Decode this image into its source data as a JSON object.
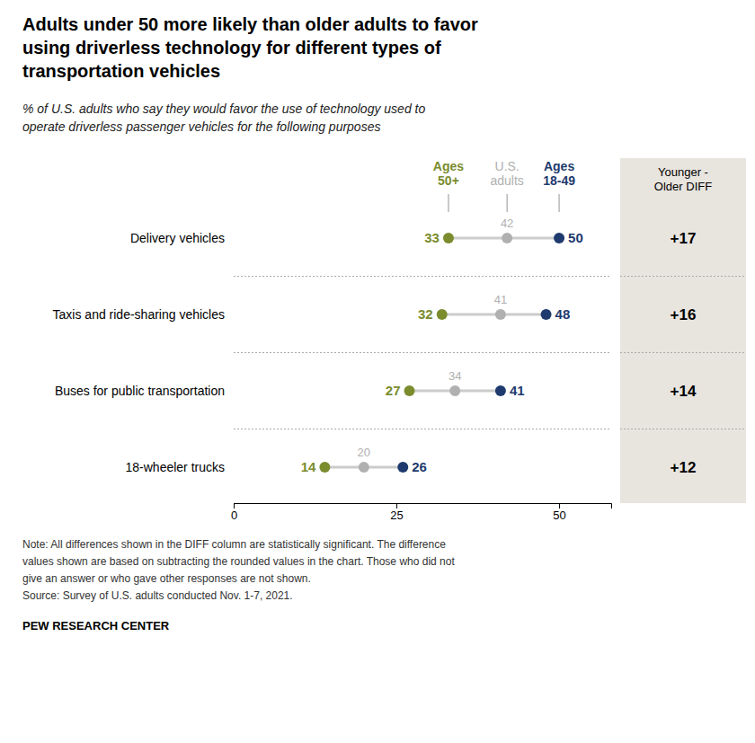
{
  "chart_data": {
    "type": "dot",
    "title": "Adults under 50 more likely than older adults to favor\nusing driverless technology for different types of\ntransportation vehicles",
    "subtitle": "% of U.S. adults who say they would favor the use of technology used to\noperate driverless passenger vehicles for the following purposes",
    "categories": [
      "Delivery vehicles",
      "Taxis and ride-sharing vehicles",
      "Buses for public transportation",
      "18-wheeler trucks"
    ],
    "series": [
      {
        "name": "Ages\n50+",
        "color": "#7a8c2e",
        "values": [
          33,
          32,
          27,
          14
        ]
      },
      {
        "name": "U.S.\nadults",
        "color": "#b0b0b0",
        "values": [
          42,
          41,
          34,
          20
        ]
      },
      {
        "name": "Ages\n18-49",
        "color": "#1e3a6e",
        "values": [
          50,
          48,
          41,
          26
        ]
      },
      {
        "name": "Younger -\nOlder DIFF",
        "type": "text",
        "color": "#e8e4de",
        "values": [
          17,
          16,
          14,
          12
        ],
        "value_labels": [
          "+17",
          "+16",
          "+14",
          "+12"
        ]
      }
    ],
    "xlim": [
      0,
      58
    ],
    "xticks": [
      0,
      25,
      50
    ],
    "grid": false,
    "tick_labels": "x",
    "data_labels": true,
    "annotations": [
      "Note: All differences shown in the DIFF column are statistically significant. The difference",
      "values shown are based on subtracting the rounded values in the chart. Those who did not",
      "give an answer or who gave other responses are not shown.",
      "Source: Survey of U.S. adults conducted Nov. 1-7, 2021.",
      "PEW RESEARCH CENTER"
    ]
  }
}
